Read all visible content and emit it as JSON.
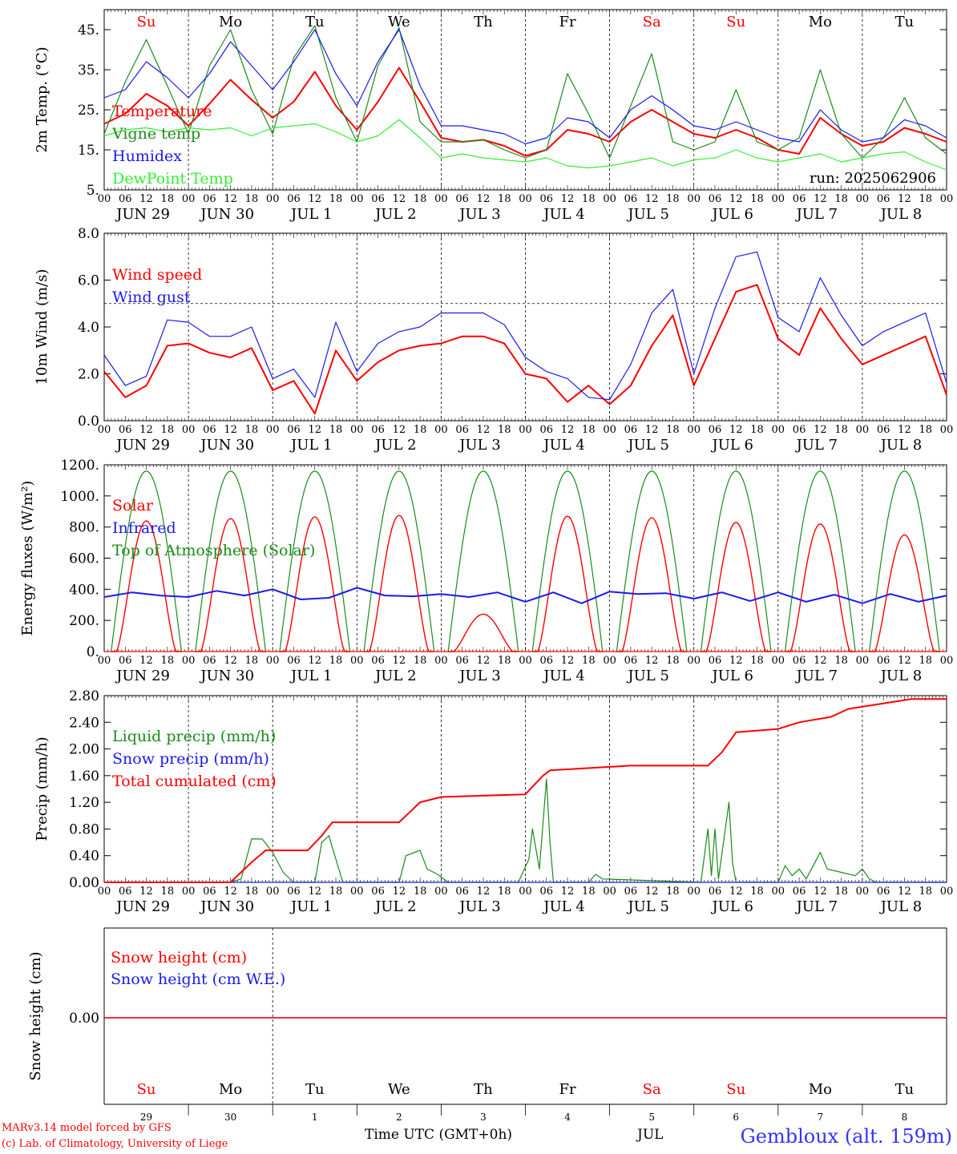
{
  "colors": {
    "red": "#ff0000",
    "green": "#1a8a1a",
    "blue": "#1a1aee",
    "lightgreen": "#33ee33"
  },
  "footer": {
    "model": "MARv3.14 model forced by GFS",
    "lab": "(c) Lab. of Climatology, University of Liege",
    "time_label": "Time UTC (GMT+0h)",
    "month_label": "JUL",
    "station": "Gembloux (alt. 159m)"
  },
  "chart_data": [
    {
      "type": "line",
      "id": "temperature",
      "ylabel": "2m Temp. (°C)",
      "ylim": [
        5,
        50
      ],
      "yticks": [
        5,
        15,
        25,
        35,
        45
      ],
      "ytick_labels": [
        "5.",
        "15.",
        "25.",
        "35.",
        "45."
      ],
      "grid": "vertical dashed day separators",
      "days_top": [
        {
          "label": "Su",
          "color": "red"
        },
        {
          "label": "Mo",
          "color": "black"
        },
        {
          "label": "Tu",
          "color": "black"
        },
        {
          "label": "We",
          "color": "black"
        },
        {
          "label": "Th",
          "color": "black"
        },
        {
          "label": "Fr",
          "color": "black"
        },
        {
          "label": "Sa",
          "color": "red"
        },
        {
          "label": "Su",
          "color": "red"
        },
        {
          "label": "Mo",
          "color": "black"
        },
        {
          "label": "Tu",
          "color": "black"
        }
      ],
      "annotation": "run: 2025062906",
      "x_hours": [
        0,
        6,
        12,
        18,
        24,
        30,
        36,
        42,
        48,
        54,
        60,
        66,
        72,
        78,
        84,
        90,
        96,
        102,
        108,
        114,
        120,
        126,
        132,
        138,
        144,
        150,
        156,
        162,
        168,
        174,
        180,
        186,
        192,
        198,
        204,
        210,
        216,
        222,
        228,
        234,
        240
      ],
      "series": [
        {
          "name": "Temperature",
          "color": "red",
          "values": [
            21.5,
            24,
            29,
            26,
            21,
            26.5,
            32.5,
            27.5,
            23,
            27,
            34.5,
            26,
            20,
            27,
            35.5,
            27,
            18,
            17,
            17.5,
            16,
            13.5,
            15,
            20,
            19,
            17,
            22,
            25,
            22,
            19,
            18,
            20,
            18,
            15,
            14,
            23,
            19,
            16,
            17,
            20.5,
            19,
            17
          ]
        },
        {
          "name": "Vigne temp",
          "color": "green",
          "values": [
            19,
            32,
            42.5,
            31,
            19,
            36,
            45,
            30,
            19,
            38,
            46,
            28,
            17,
            36,
            45.5,
            22,
            17,
            17,
            17.5,
            15,
            13,
            15,
            34,
            24,
            13,
            26,
            39,
            17,
            15,
            17,
            30,
            17,
            15,
            18,
            35,
            19,
            13,
            18,
            28,
            18,
            14
          ]
        },
        {
          "name": "Humidex",
          "color": "blue",
          "values": [
            28,
            30,
            37,
            33,
            28,
            34,
            42,
            36,
            30,
            37,
            45,
            34,
            26,
            37,
            45,
            31,
            21,
            21,
            20,
            19,
            16.5,
            18,
            23,
            22,
            18,
            25,
            28.5,
            25,
            21,
            20,
            22,
            20,
            18,
            17,
            25,
            20,
            17,
            18,
            22.5,
            21,
            18
          ]
        },
        {
          "name": "DewPoint Temp",
          "color": "lightgreen",
          "values": [
            18.5,
            20,
            20.5,
            19.5,
            20.5,
            20,
            20.5,
            18.5,
            20.5,
            21,
            21.5,
            19.5,
            17,
            18.5,
            22.5,
            18,
            13,
            14,
            13,
            12.5,
            12,
            13,
            11,
            10.5,
            11,
            12,
            13,
            11,
            12.5,
            13,
            15,
            13,
            12,
            13,
            14,
            12,
            13,
            14,
            14.5,
            12,
            10
          ]
        }
      ]
    },
    {
      "type": "line",
      "id": "wind",
      "ylabel": "10m Wind (m/s)",
      "ylim": [
        0,
        8
      ],
      "yticks": [
        0,
        2,
        4,
        6,
        8
      ],
      "ytick_labels": [
        "0.0",
        "2.0",
        "4.0",
        "6.0",
        "8.0"
      ],
      "reference_line": 5,
      "x_hours": [
        0,
        6,
        12,
        18,
        24,
        30,
        36,
        42,
        48,
        54,
        60,
        66,
        72,
        78,
        84,
        90,
        96,
        102,
        108,
        114,
        120,
        126,
        132,
        138,
        144,
        150,
        156,
        162,
        168,
        174,
        180,
        186,
        192,
        198,
        204,
        210,
        216,
        222,
        228,
        234,
        240
      ],
      "series": [
        {
          "name": "Wind speed",
          "color": "red",
          "values": [
            2.1,
            1.0,
            1.5,
            3.2,
            3.3,
            2.9,
            2.7,
            3.1,
            1.3,
            1.7,
            0.3,
            3.0,
            1.7,
            2.5,
            3.0,
            3.2,
            3.3,
            3.6,
            3.6,
            3.3,
            2.0,
            1.8,
            0.8,
            1.5,
            0.7,
            1.5,
            3.2,
            4.5,
            1.5,
            3.5,
            5.5,
            5.8,
            3.5,
            2.8,
            4.8,
            3.5,
            2.4,
            2.8,
            3.2,
            3.6,
            1.1
          ]
        },
        {
          "name": "Wind gust",
          "color": "blue",
          "values": [
            2.8,
            1.5,
            1.9,
            4.3,
            4.2,
            3.6,
            3.6,
            4.0,
            1.8,
            2.2,
            1.0,
            4.2,
            2.1,
            3.3,
            3.8,
            4.0,
            4.6,
            4.6,
            4.6,
            4.1,
            2.7,
            2.1,
            1.8,
            1.0,
            0.9,
            2.4,
            4.6,
            5.6,
            2.0,
            4.8,
            7.0,
            7.2,
            4.4,
            3.8,
            6.1,
            4.5,
            3.2,
            3.8,
            4.2,
            4.6,
            1.6
          ]
        }
      ]
    },
    {
      "type": "line",
      "id": "energy",
      "ylabel": "Energy fluxes (W/m²)",
      "ylim": [
        0,
        1200
      ],
      "yticks": [
        0,
        200,
        400,
        600,
        800,
        1000,
        1200
      ],
      "ytick_labels": [
        "0.",
        "200.",
        "400.",
        "600.",
        "800.",
        "1000.",
        "1200."
      ],
      "solar_peaks": [
        840,
        855,
        865,
        875,
        240,
        870,
        860,
        830,
        820,
        750
      ],
      "toa_peak": 1160,
      "series": [
        {
          "name": "Solar",
          "color": "red"
        },
        {
          "name": "Infrared",
          "color": "blue",
          "values": [
            350,
            380,
            360,
            350,
            390,
            360,
            400,
            335,
            345,
            410,
            360,
            355,
            370,
            350,
            380,
            320,
            380,
            310,
            385,
            370,
            375,
            340,
            380,
            325,
            380,
            320,
            365,
            310,
            370,
            320,
            360
          ]
        },
        {
          "name": "Top of Atmosphere (Solar)",
          "color": "green"
        }
      ]
    },
    {
      "type": "line",
      "id": "precip",
      "ylabel": "Precip (mm/h)",
      "ylim": [
        0,
        2.8
      ],
      "yticks": [
        0,
        0.4,
        0.8,
        1.2,
        1.6,
        2.0,
        2.4,
        2.8
      ],
      "ytick_labels": [
        "0.00",
        "0.40",
        "0.80",
        "1.20",
        "1.60",
        "2.00",
        "2.40",
        "2.80"
      ],
      "series": [
        {
          "name": "Liquid precip (mm/h)",
          "color": "green",
          "points": [
            [
              0,
              0
            ],
            [
              36,
              0
            ],
            [
              39,
              0.05
            ],
            [
              42,
              0.65
            ],
            [
              45,
              0.65
            ],
            [
              48,
              0.45
            ],
            [
              51,
              0.15
            ],
            [
              54,
              0
            ],
            [
              60,
              0
            ],
            [
              62,
              0.6
            ],
            [
              64,
              0.7
            ],
            [
              66,
              0.35
            ],
            [
              68,
              0
            ],
            [
              84,
              0
            ],
            [
              86,
              0.4
            ],
            [
              90,
              0.48
            ],
            [
              92,
              0.2
            ],
            [
              95,
              0.12
            ],
            [
              98,
              0
            ],
            [
              118,
              0
            ],
            [
              121,
              0.35
            ],
            [
              122,
              0.8
            ],
            [
              124,
              0.2
            ],
            [
              126,
              1.55
            ],
            [
              127,
              0.6
            ],
            [
              128,
              0
            ],
            [
              138,
              0
            ],
            [
              140,
              0.12
            ],
            [
              142,
              0.05
            ],
            [
              170,
              0
            ],
            [
              172,
              0.8
            ],
            [
              173,
              0.1
            ],
            [
              174,
              0.8
            ],
            [
              175,
              0.05
            ],
            [
              178,
              1.2
            ],
            [
              179,
              0.3
            ],
            [
              180,
              0
            ],
            [
              192,
              0
            ],
            [
              194,
              0.25
            ],
            [
              196,
              0.1
            ],
            [
              198,
              0.2
            ],
            [
              200,
              0.05
            ],
            [
              204,
              0.45
            ],
            [
              206,
              0.2
            ],
            [
              210,
              0.15
            ],
            [
              214,
              0.1
            ],
            [
              216,
              0.2
            ],
            [
              218,
              0.05
            ],
            [
              220,
              0
            ],
            [
              240,
              0
            ]
          ]
        },
        {
          "name": "Snow precip (mm/h)",
          "color": "blue",
          "points": [
            [
              0,
              0
            ],
            [
              240,
              0
            ]
          ]
        },
        {
          "name": "Total cumulated (cm)",
          "color": "red",
          "points": [
            [
              0,
              0
            ],
            [
              36,
              0
            ],
            [
              42,
              0.3
            ],
            [
              46,
              0.48
            ],
            [
              58,
              0.48
            ],
            [
              62,
              0.7
            ],
            [
              65,
              0.9
            ],
            [
              84,
              0.9
            ],
            [
              90,
              1.2
            ],
            [
              96,
              1.28
            ],
            [
              120,
              1.32
            ],
            [
              125,
              1.6
            ],
            [
              127,
              1.68
            ],
            [
              150,
              1.75
            ],
            [
              172,
              1.75
            ],
            [
              176,
              1.95
            ],
            [
              180,
              2.25
            ],
            [
              192,
              2.3
            ],
            [
              198,
              2.4
            ],
            [
              207,
              2.48
            ],
            [
              212,
              2.6
            ],
            [
              230,
              2.75
            ],
            [
              240,
              2.75
            ]
          ]
        }
      ]
    },
    {
      "type": "line",
      "id": "snow",
      "ylabel": "Snow height (cm)",
      "yticks": [
        0
      ],
      "ytick_labels": [
        "0.00"
      ],
      "series": [
        {
          "name": "Snow height (cm)",
          "color": "red",
          "values": [
            0,
            0
          ]
        },
        {
          "name": "Snow height (cm W.E.)",
          "color": "blue",
          "values": [
            0,
            0
          ]
        }
      ],
      "days_bottom": [
        {
          "label": "Su",
          "color": "red",
          "num": "29"
        },
        {
          "label": "Mo",
          "color": "black",
          "num": "30"
        },
        {
          "label": "Tu",
          "color": "black",
          "num": "1"
        },
        {
          "label": "We",
          "color": "black",
          "num": "2"
        },
        {
          "label": "Th",
          "color": "black",
          "num": "3"
        },
        {
          "label": "Fr",
          "color": "black",
          "num": "4"
        },
        {
          "label": "Sa",
          "color": "red",
          "num": "5"
        },
        {
          "label": "Su",
          "color": "red",
          "num": "6"
        },
        {
          "label": "Mo",
          "color": "black",
          "num": "7"
        },
        {
          "label": "Tu",
          "color": "black",
          "num": "8"
        }
      ]
    }
  ],
  "x_axis": {
    "hour_labels": [
      "00",
      "06",
      "12",
      "18"
    ],
    "date_labels": [
      "JUN 29",
      "JUN 30",
      "JUL  1",
      "JUL  2",
      "JUL  3",
      "JUL  4",
      "JUL  5",
      "JUL  6",
      "JUL  7",
      "JUL  8"
    ]
  }
}
